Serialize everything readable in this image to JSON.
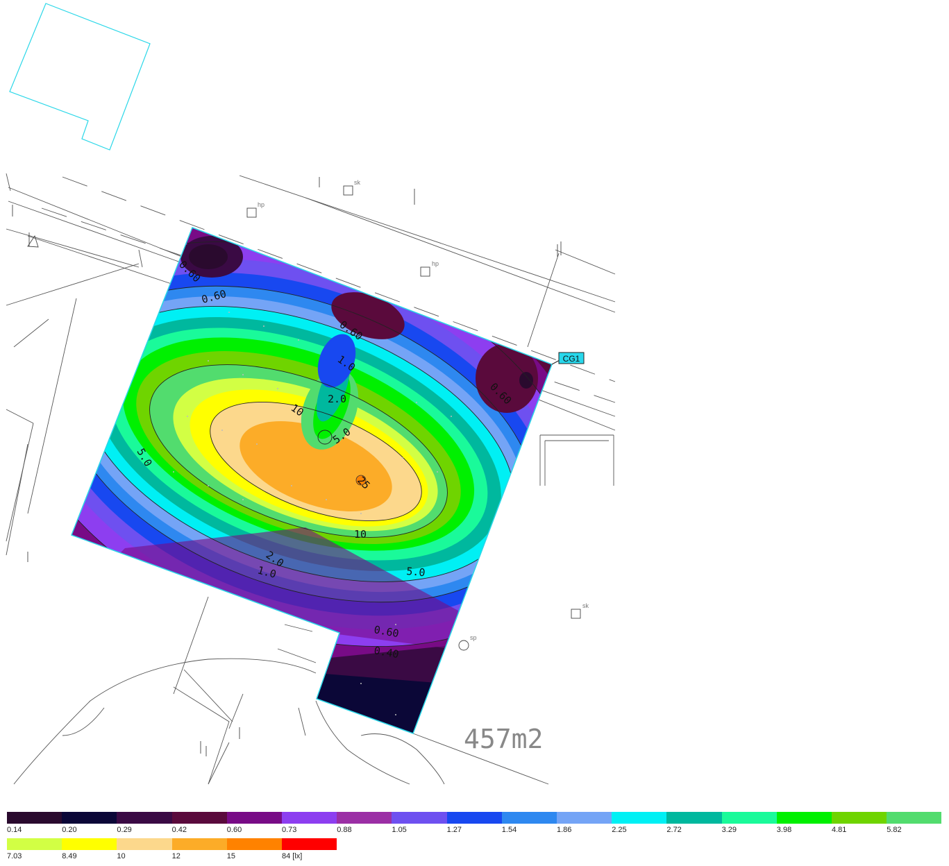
{
  "plan": {
    "area_label": "457m2",
    "calc_grid_tag": "CG1",
    "annotations": [
      {
        "id": "sk-1",
        "text": "sk"
      },
      {
        "id": "hp-1",
        "text": "hp"
      },
      {
        "id": "hp-2",
        "text": "hp"
      },
      {
        "id": "sk-2",
        "text": "sk"
      },
      {
        "id": "sp-1",
        "text": "sp"
      }
    ],
    "contour_labels": [
      {
        "id": "c-060-a",
        "text": "0.60"
      },
      {
        "id": "c-060-b",
        "text": "0.60"
      },
      {
        "id": "c-060-c",
        "text": "0.60"
      },
      {
        "id": "c-060-d",
        "text": "0.60"
      },
      {
        "id": "c-060-e",
        "text": "0.60"
      },
      {
        "id": "c-040",
        "text": "0.40"
      },
      {
        "id": "c-1-a",
        "text": "1.0"
      },
      {
        "id": "c-1-b",
        "text": "1.0"
      },
      {
        "id": "c-2-a",
        "text": "2.0"
      },
      {
        "id": "c-2-b",
        "text": "2.0"
      },
      {
        "id": "c-5-a",
        "text": "5.0"
      },
      {
        "id": "c-5-b",
        "text": "5.0"
      },
      {
        "id": "c-5-c",
        "text": "5.0"
      },
      {
        "id": "c-10-a",
        "text": "10"
      },
      {
        "id": "c-10-b",
        "text": "10"
      },
      {
        "id": "c-25",
        "text": "25"
      }
    ]
  },
  "legend": {
    "unit": "[lx]",
    "row1": [
      {
        "label": "0.14",
        "color": "#2a0a2e"
      },
      {
        "label": "0.20",
        "color": "#0b0737"
      },
      {
        "label": "0.29",
        "color": "#3a0a44"
      },
      {
        "label": "0.42",
        "color": "#5a0a3c"
      },
      {
        "label": "0.60",
        "color": "#780b86"
      },
      {
        "label": "0.73",
        "color": "#8d3ef0"
      },
      {
        "label": "0.88",
        "color": "#9b2fa5"
      },
      {
        "label": "1.05",
        "color": "#6e50f0"
      },
      {
        "label": "1.27",
        "color": "#1848f0"
      },
      {
        "label": "1.54",
        "color": "#2e88f0"
      },
      {
        "label": "1.86",
        "color": "#74a4f6"
      },
      {
        "label": "2.25",
        "color": "#00f0f4"
      },
      {
        "label": "2.72",
        "color": "#00b89e"
      },
      {
        "label": "3.29",
        "color": "#1afa9a"
      },
      {
        "label": "3.98",
        "color": "#00f000"
      },
      {
        "label": "4.81",
        "color": "#6fd400"
      },
      {
        "label": "5.82",
        "color": "#52dc6e"
      }
    ],
    "row2": [
      {
        "label": "7.03",
        "color": "#d2ff44"
      },
      {
        "label": "8.49",
        "color": "#ffff00"
      },
      {
        "label": "10",
        "color": "#fcd88c"
      },
      {
        "label": "12",
        "color": "#fcac28"
      },
      {
        "label": "15",
        "color": "#ff8200"
      },
      {
        "label": "84 [lx]",
        "color": "#ff0000"
      }
    ]
  }
}
